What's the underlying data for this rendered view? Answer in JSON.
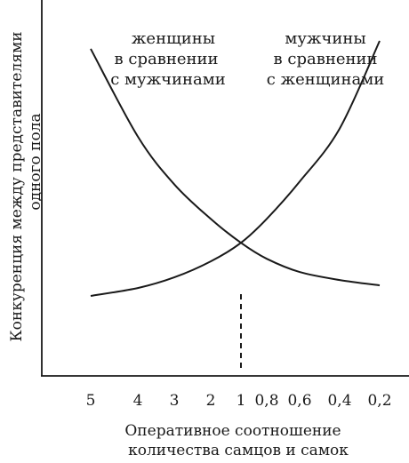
{
  "chart_data": {
    "type": "line",
    "xlabel": [
      "Оперативное соотношение",
      "количества самцов и самок"
    ],
    "ylabel": [
      "Конкуренция между представителями",
      "одного пола"
    ],
    "x_ticks": [
      "5",
      "4",
      "3",
      "2",
      "1",
      "0,8",
      "0,6",
      "0,4",
      "0,2"
    ],
    "y_ticks_shown": false,
    "grid": false,
    "series": [
      {
        "name": [
          "женщины",
          "в сравнении",
          "с мужчинами"
        ],
        "x": [
          "5",
          "4",
          "3",
          "2",
          "1",
          "0,8",
          "0,6",
          "0,4",
          "0,2"
        ],
        "values": [
          0.95,
          0.62,
          0.44,
          0.31,
          0.22,
          0.16,
          0.11,
          0.08,
          0.06
        ]
      },
      {
        "name": [
          "мужчины",
          "в сравнении",
          "с женщинами"
        ],
        "x": [
          "5",
          "4",
          "3",
          "2",
          "1",
          "0,8",
          "0,6",
          "0,4",
          "0,2"
        ],
        "values": [
          0.02,
          0.05,
          0.09,
          0.15,
          0.22,
          0.31,
          0.45,
          0.65,
          0.98
        ]
      }
    ],
    "marker": {
      "x": "1",
      "style": "dashed vertical line"
    }
  }
}
